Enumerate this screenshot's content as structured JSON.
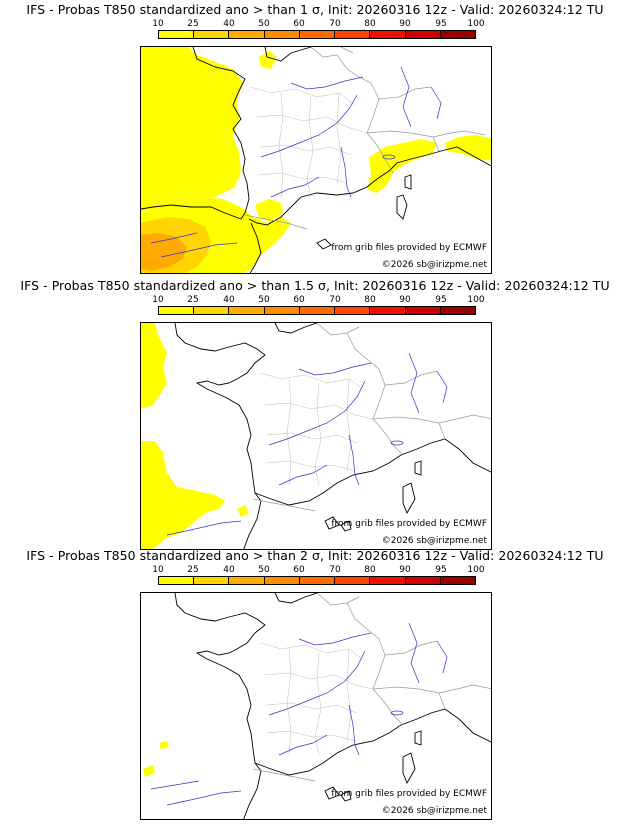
{
  "scale": {
    "ticks": [
      "10",
      "25",
      "40",
      "50",
      "60",
      "70",
      "80",
      "90",
      "95",
      "100"
    ],
    "colors": [
      "#ffff00",
      "#ffd500",
      "#ffaa00",
      "#ff8c00",
      "#ff6a00",
      "#ff4500",
      "#ee1100",
      "#cc0000",
      "#990000",
      "#550000"
    ]
  },
  "map_style": {
    "river_color": "#3333cc",
    "border_color": "#999999",
    "coast_color": "#000000"
  },
  "panels": [
    {
      "title": "IFS - Probas T850  standardized ano > than 1 σ, Init: 20260316 12z - Valid: 20260324:12 TU",
      "sigma": "1",
      "source_text": "from grib files provided by ECMWF",
      "copyright": "©2026 sb@irizpme.net",
      "areas": [
        {
          "region": "atlantic-west-coast",
          "class": "10-25"
        },
        {
          "region": "bay-of-biscay",
          "class": "10-25"
        },
        {
          "region": "iberia-north",
          "class": "25-40"
        },
        {
          "region": "catalonia-coast",
          "class": "10-25"
        },
        {
          "region": "alps-ligurian",
          "class": "10-25"
        },
        {
          "region": "north-italy",
          "class": "10-25"
        }
      ]
    },
    {
      "title": "IFS - Probas T850  standardized ano > than 1.5 σ, Init: 20260316 12z - Valid: 20260324:12 TU",
      "sigma": "1.5",
      "source_text": "from grib files provided by ECMWF",
      "copyright": "©2026 sb@irizpme.net",
      "areas": [
        {
          "region": "atlantic-west",
          "class": "10-25"
        },
        {
          "region": "iberia-north-west",
          "class": "10-25"
        }
      ]
    },
    {
      "title": "IFS - Probas T850  standardized ano > than 2 σ, Init: 20260316 12z - Valid: 20260324:12 TU",
      "sigma": "2",
      "source_text": "from grib files provided by ECMWF",
      "copyright": "©2026 sb@irizpme.net",
      "areas": [
        {
          "region": "atlantic-south-west",
          "class": "10-25"
        }
      ]
    }
  ]
}
